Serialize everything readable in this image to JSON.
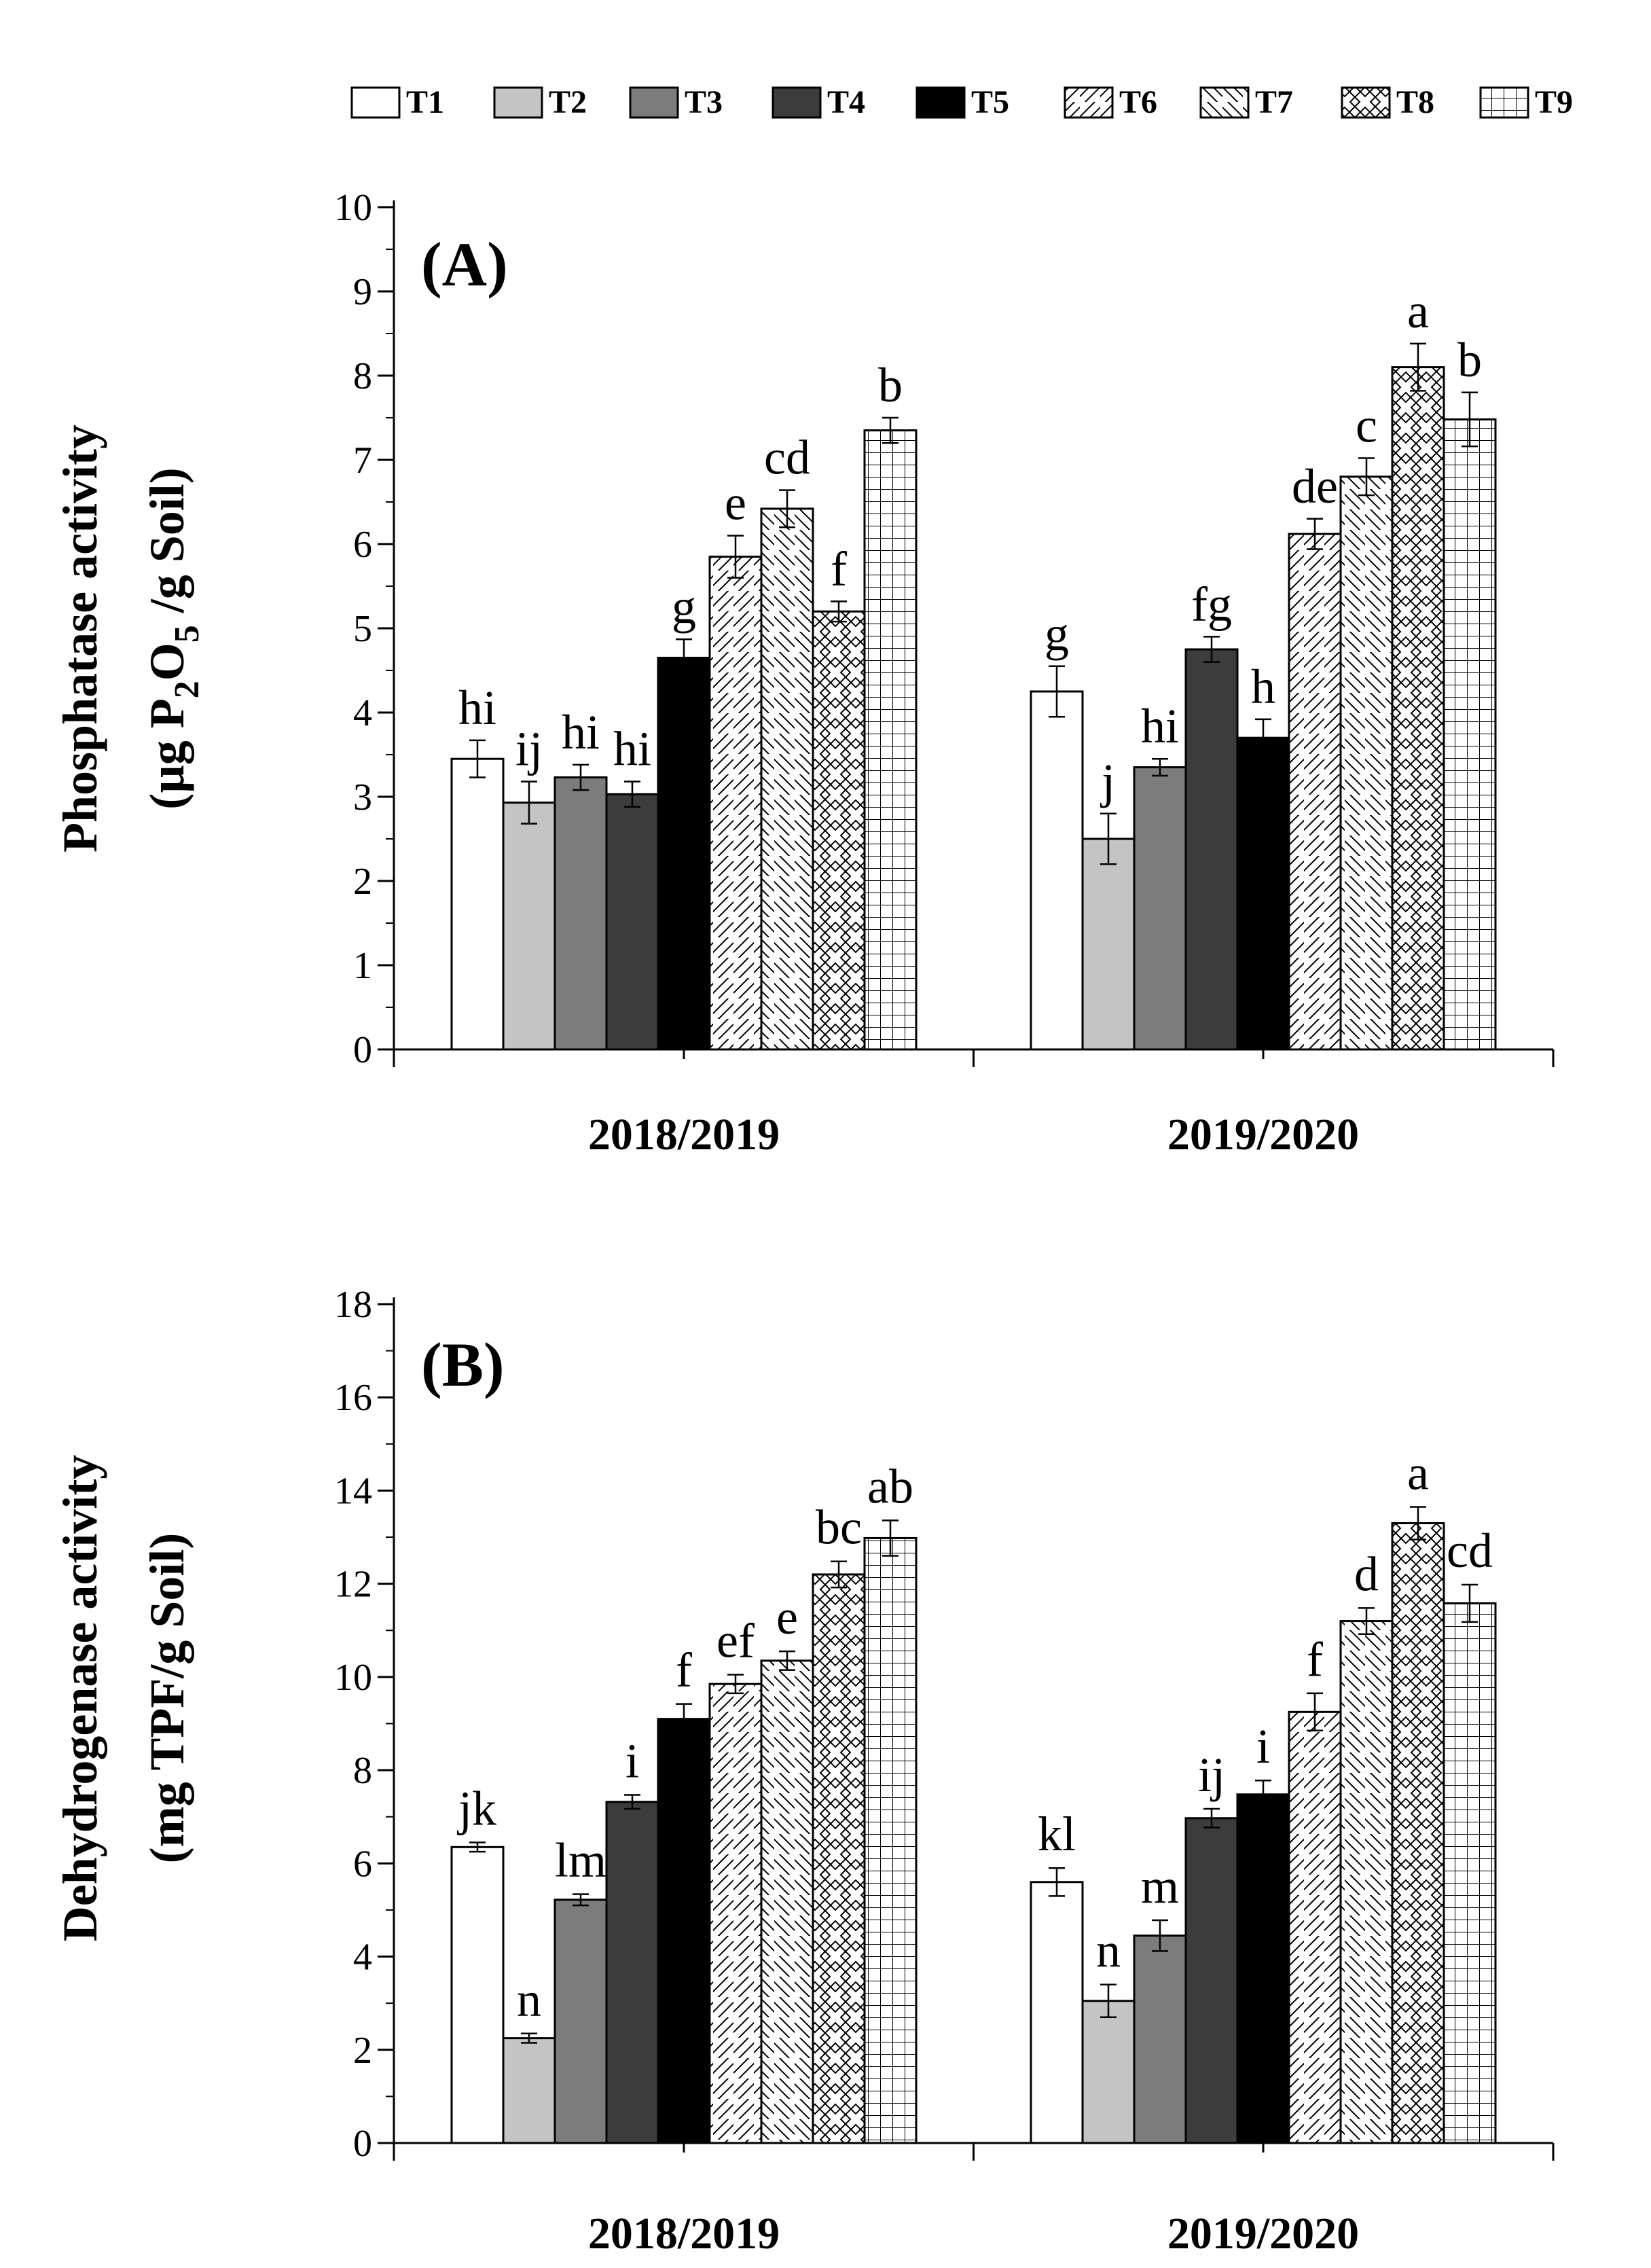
{
  "legend": [
    {
      "label": "T1",
      "fill": "#ffffff",
      "pattern": "none"
    },
    {
      "label": "T2",
      "fill": "#c4c4c4",
      "pattern": "none"
    },
    {
      "label": "T3",
      "fill": "#7c7c7c",
      "pattern": "none"
    },
    {
      "label": "T4",
      "fill": "#3c3c3c",
      "pattern": "none"
    },
    {
      "label": "T5",
      "fill": "#000000",
      "pattern": "none"
    },
    {
      "label": "T6",
      "fill": "#ffffff",
      "pattern": "diag-fwd"
    },
    {
      "label": "T7",
      "fill": "#ffffff",
      "pattern": "diag-back"
    },
    {
      "label": "T8",
      "fill": "#ffffff",
      "pattern": "crosshatch"
    },
    {
      "label": "T9",
      "fill": "#ffffff",
      "pattern": "grid"
    }
  ],
  "chart_data": [
    {
      "type": "bar",
      "panel_label": "(A)",
      "ylabel_line1": "Phosphatase activity",
      "ylabel_line2_parts": [
        "(µg P",
        "2",
        "O",
        "5",
        " /g Soil)"
      ],
      "ylim": [
        0,
        10
      ],
      "yticks": [
        "0",
        "1",
        "2",
        "3",
        "4",
        "5",
        "6",
        "7",
        "8",
        "9",
        "10"
      ],
      "categories": [
        "2018/2019",
        "2019/2020"
      ],
      "series": [
        {
          "name": "T1",
          "values": [
            3.45,
            4.25
          ],
          "errors": [
            0.22,
            0.3
          ],
          "letters": [
            "hi",
            "g"
          ]
        },
        {
          "name": "T2",
          "values": [
            2.93,
            2.5
          ],
          "errors": [
            0.25,
            0.3
          ],
          "letters": [
            "ij",
            "j"
          ]
        },
        {
          "name": "T3",
          "values": [
            3.23,
            3.35
          ],
          "errors": [
            0.15,
            0.1
          ],
          "letters": [
            "hi",
            "hi"
          ]
        },
        {
          "name": "T4",
          "values": [
            3.03,
            4.75
          ],
          "errors": [
            0.15,
            0.15
          ],
          "letters": [
            "hi",
            "fg"
          ]
        },
        {
          "name": "T5",
          "values": [
            4.65,
            3.7
          ],
          "errors": [
            0.22,
            0.22
          ],
          "letters": [
            "g",
            "h"
          ]
        },
        {
          "name": "T6",
          "values": [
            5.85,
            6.12
          ],
          "errors": [
            0.25,
            0.18
          ],
          "letters": [
            "e",
            "de"
          ]
        },
        {
          "name": "T7",
          "values": [
            6.42,
            6.8
          ],
          "errors": [
            0.22,
            0.22
          ],
          "letters": [
            "cd",
            "c"
          ]
        },
        {
          "name": "T8",
          "values": [
            5.2,
            8.1
          ],
          "errors": [
            0.12,
            0.28
          ],
          "letters": [
            "f",
            "a"
          ]
        },
        {
          "name": "T9",
          "values": [
            7.35,
            7.48
          ],
          "errors": [
            0.15,
            0.32
          ],
          "letters": [
            "b",
            "b"
          ]
        }
      ]
    },
    {
      "type": "bar",
      "panel_label": "(B)",
      "ylabel_line1": "Dehydrogenase activity",
      "ylabel_line2_parts": [
        "(mg TPF/g Soil)"
      ],
      "ylim": [
        0,
        18
      ],
      "yticks": [
        "0",
        "2",
        "4",
        "6",
        "8",
        "10",
        "12",
        "14",
        "16",
        "18"
      ],
      "categories": [
        "2018/2019",
        "2019/2020"
      ],
      "series": [
        {
          "name": "T1",
          "values": [
            6.35,
            5.6
          ],
          "errors": [
            0.1,
            0.3
          ],
          "letters": [
            "jk",
            "kl"
          ]
        },
        {
          "name": "T2",
          "values": [
            2.25,
            3.05
          ],
          "errors": [
            0.1,
            0.35
          ],
          "letters": [
            "n",
            "n"
          ]
        },
        {
          "name": "T3",
          "values": [
            5.22,
            4.45
          ],
          "errors": [
            0.12,
            0.33
          ],
          "letters": [
            "lm",
            "m"
          ]
        },
        {
          "name": "T4",
          "values": [
            7.32,
            6.97
          ],
          "errors": [
            0.15,
            0.2
          ],
          "letters": [
            "i",
            "ij"
          ]
        },
        {
          "name": "T5",
          "values": [
            9.1,
            7.48
          ],
          "errors": [
            0.32,
            0.3
          ],
          "letters": [
            "f",
            "i"
          ]
        },
        {
          "name": "T6",
          "values": [
            9.85,
            9.25
          ],
          "errors": [
            0.2,
            0.4
          ],
          "letters": [
            "ef",
            "f"
          ]
        },
        {
          "name": "T7",
          "values": [
            10.35,
            11.2
          ],
          "errors": [
            0.2,
            0.28
          ],
          "letters": [
            "e",
            "d"
          ]
        },
        {
          "name": "T8",
          "values": [
            12.2,
            13.3
          ],
          "errors": [
            0.28,
            0.35
          ],
          "letters": [
            "bc",
            "a"
          ]
        },
        {
          "name": "T9",
          "values": [
            12.98,
            11.58
          ],
          "errors": [
            0.38,
            0.4
          ],
          "letters": [
            "ab",
            "cd"
          ]
        }
      ]
    }
  ]
}
